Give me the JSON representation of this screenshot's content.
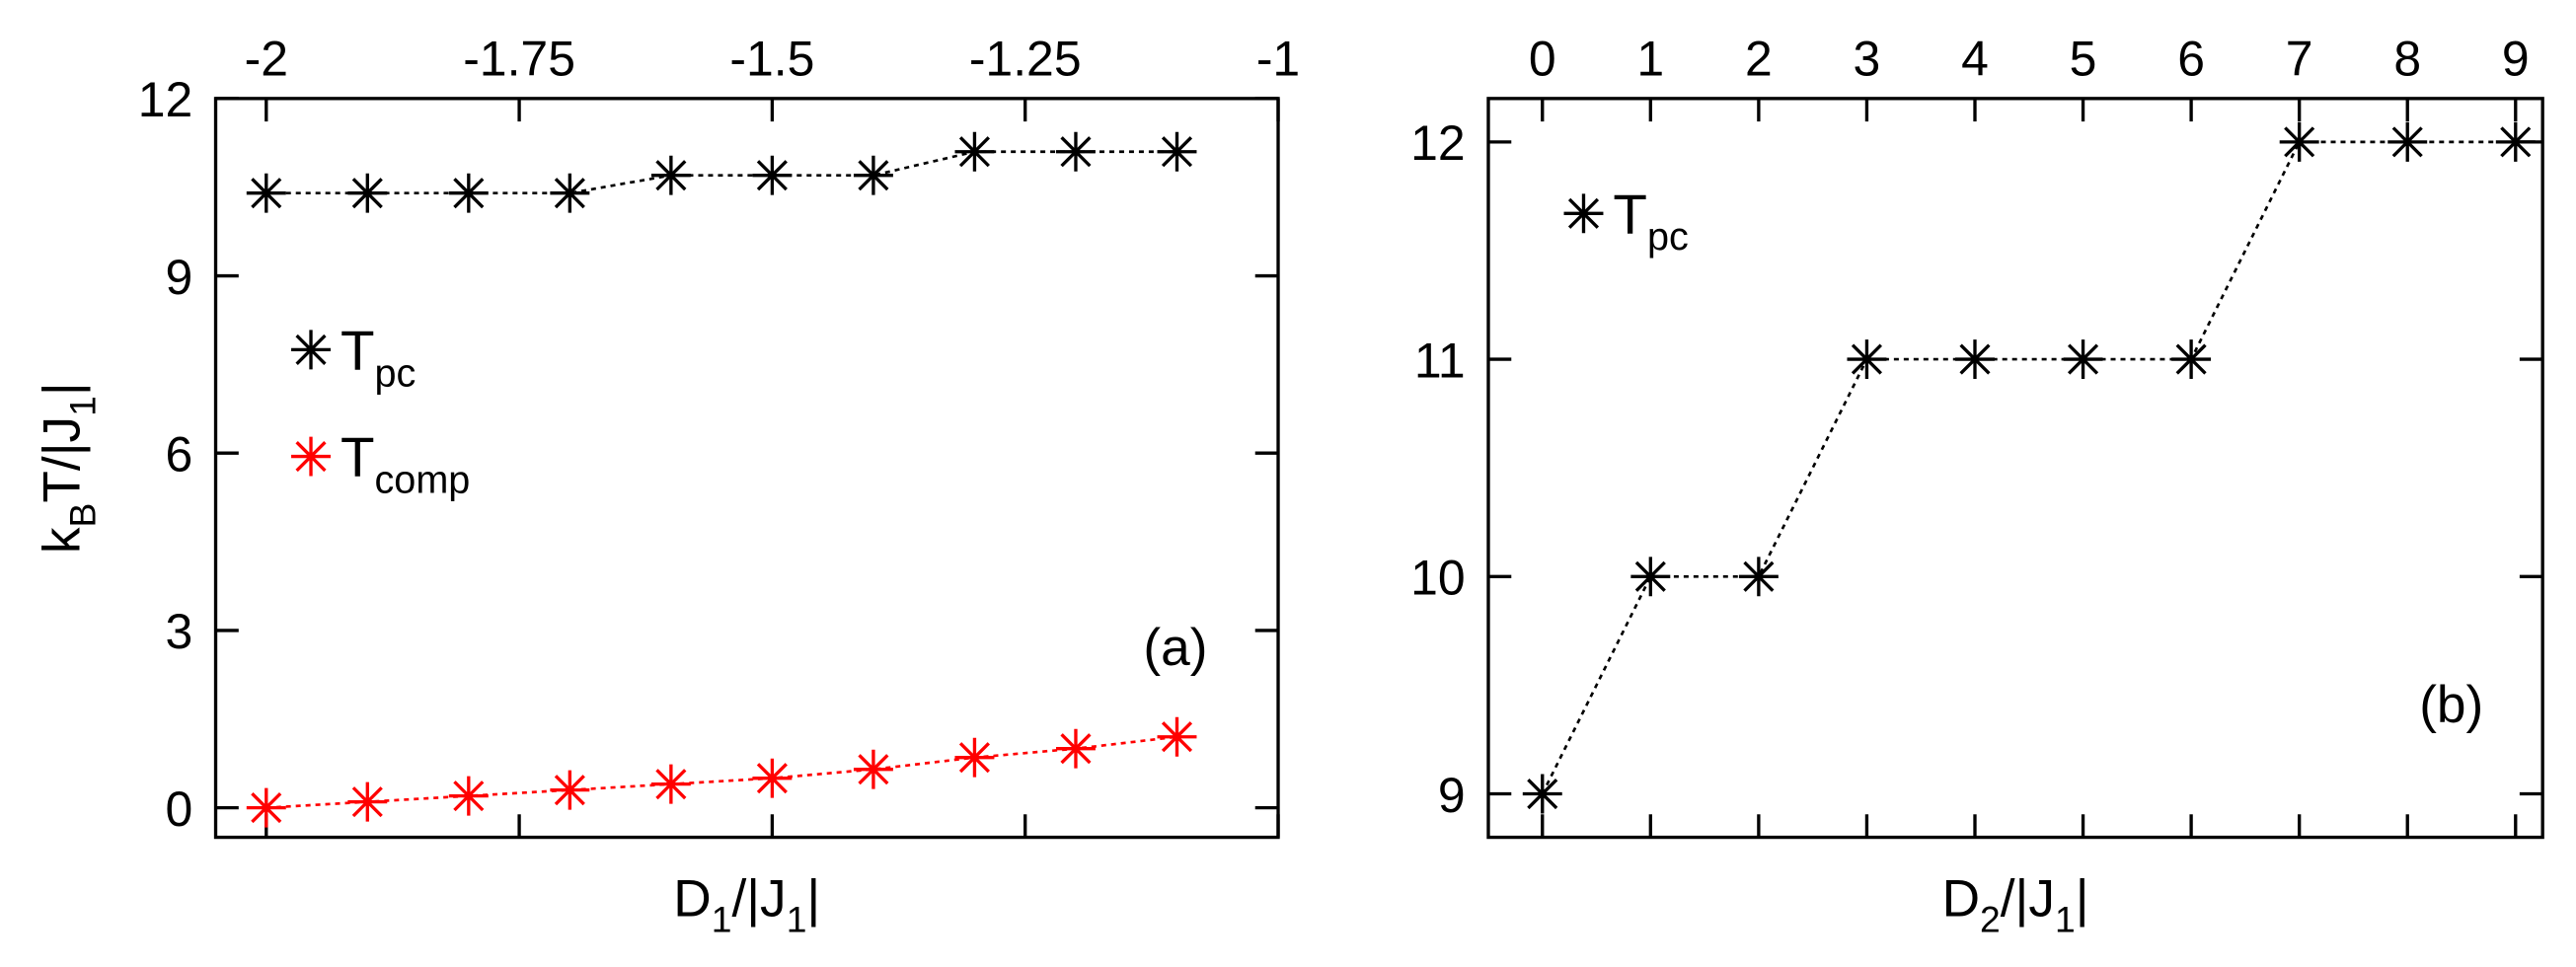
{
  "chart_data": [
    {
      "type": "line",
      "panel_label": "(a)",
      "x_label": [
        "D",
        "1",
        "/|J",
        "1",
        "|"
      ],
      "y_label": [
        "k",
        "B",
        "T/|J",
        "1",
        "|"
      ],
      "x": [
        -2,
        -1.9,
        -1.8,
        -1.7,
        -1.6,
        -1.5,
        -1.4,
        -1.3,
        -1.2,
        -1.1
      ],
      "xlim": [
        -2.05,
        -1
      ],
      "xticks": [
        -2,
        -1.75,
        -1.5,
        -1.25,
        -1
      ],
      "x_tick_labels_position": "top",
      "ylim": [
        -0.5,
        12
      ],
      "yticks": [
        0,
        3,
        6,
        9,
        12
      ],
      "legend_position": "center left",
      "series": [
        {
          "name": [
            "T",
            "pc"
          ],
          "color": "#000000",
          "values": [
            10.4,
            10.4,
            10.4,
            10.4,
            10.7,
            10.7,
            10.7,
            11.1,
            11.1,
            11.1
          ]
        },
        {
          "name": [
            "T",
            "comp"
          ],
          "color": "#ff0000",
          "values": [
            0,
            0.1,
            0.2,
            0.3,
            0.4,
            0.5,
            0.65,
            0.85,
            1.0,
            1.2
          ]
        }
      ]
    },
    {
      "type": "line",
      "panel_label": "(b)",
      "x_label": [
        "D",
        "2",
        "/|J",
        "1",
        "|"
      ],
      "x": [
        0,
        1,
        2,
        3,
        4,
        5,
        6,
        7,
        8,
        9
      ],
      "xlim": [
        -0.5,
        9.25
      ],
      "xticks": [
        0,
        1,
        2,
        3,
        4,
        5,
        6,
        7,
        8,
        9
      ],
      "x_tick_labels_position": "top",
      "ylim": [
        8.8,
        12.2
      ],
      "yticks": [
        9,
        10,
        11,
        12
      ],
      "legend_position": "upper left",
      "series": [
        {
          "name": [
            "T",
            "pc"
          ],
          "color": "#000000",
          "values": [
            9,
            10,
            10,
            11,
            11,
            11,
            11,
            12,
            12,
            12
          ]
        }
      ]
    }
  ]
}
